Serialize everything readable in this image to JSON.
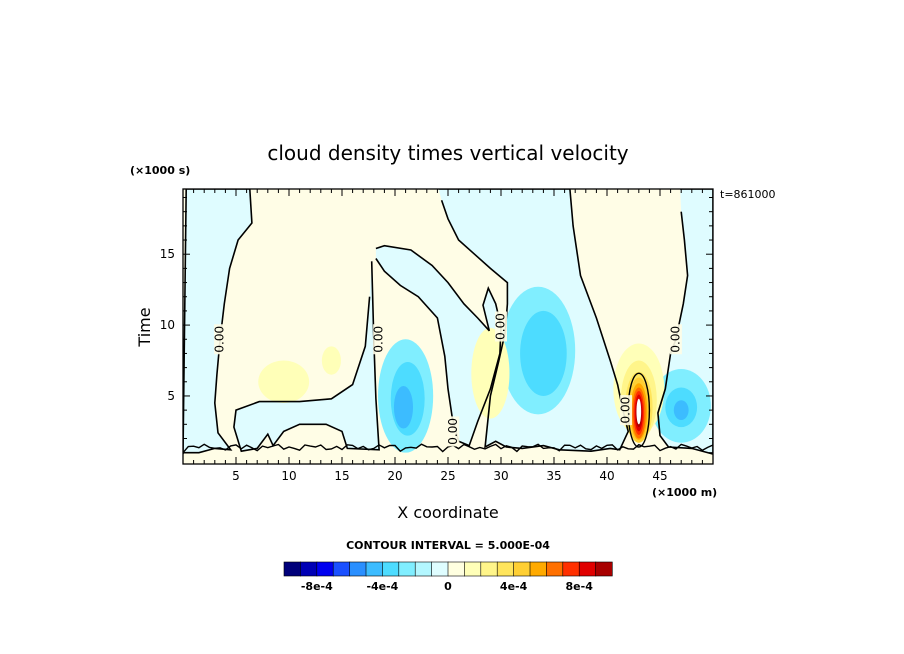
{
  "chart_data": {
    "type": "heatmap",
    "title": "cloud density times vertical velocity",
    "xlabel": "X coordinate",
    "ylabel": "Time",
    "x_unit": "(×1000 m)",
    "y_unit": "(×1000 s)",
    "time_stamp": "t=861000",
    "contour_interval_text": "CONTOUR INTERVAL = 5.000E-04",
    "xlim": [
      0,
      50
    ],
    "ylim": [
      0.2,
      19.6
    ],
    "x_ticks": [
      5,
      10,
      15,
      20,
      25,
      30,
      35,
      40,
      45
    ],
    "y_ticks": [
      5,
      10,
      15
    ],
    "contour_label": "0.00",
    "zero_contour_labels": [
      {
        "x": 3.5,
        "y": 9.0
      },
      {
        "x": 18.5,
        "y": 9.0
      },
      {
        "x": 25.5,
        "y": 2.5
      },
      {
        "x": 30.0,
        "y": 9.9
      },
      {
        "x": 41.8,
        "y": 4.0
      },
      {
        "x": 46.5,
        "y": 9.0
      }
    ],
    "features": [
      {
        "kind": "max",
        "x": 43.0,
        "y": 3.8,
        "value": 0.00095
      },
      {
        "kind": "min",
        "x": 21.0,
        "y": 4.5,
        "value": -0.0003
      },
      {
        "kind": "min",
        "x": 47.0,
        "y": 4.2,
        "value": -0.00035
      },
      {
        "kind": "min",
        "x": 34.0,
        "y": 8.0,
        "value": -0.00025
      },
      {
        "kind": "max",
        "x": 29.0,
        "y": 6.5,
        "value": 0.0001
      },
      {
        "kind": "max",
        "x": 9.5,
        "y": 6.0,
        "value": 0.0001
      }
    ],
    "colorbar": {
      "tick_labels": [
        "-8e-4",
        "-4e-4",
        "0",
        "4e-4",
        "8e-4"
      ],
      "tick_values": [
        -0.0008,
        -0.0004,
        0,
        0.0004,
        0.0008
      ],
      "range": [
        -0.001,
        0.001
      ],
      "colors": [
        "#00007a",
        "#0000b5",
        "#0000f0",
        "#1a50ff",
        "#2a8fff",
        "#3cbcff",
        "#4ddcff",
        "#80eeff",
        "#b3f7ff",
        "#dffdff",
        "#ffffe0",
        "#ffffb8",
        "#fff58a",
        "#ffe55c",
        "#ffcf33",
        "#ffaa00",
        "#ff7000",
        "#ff3000",
        "#e00000",
        "#a80000"
      ]
    },
    "background_colors": {
      "positive": "#fffde6",
      "negative": "#dffcff"
    }
  }
}
